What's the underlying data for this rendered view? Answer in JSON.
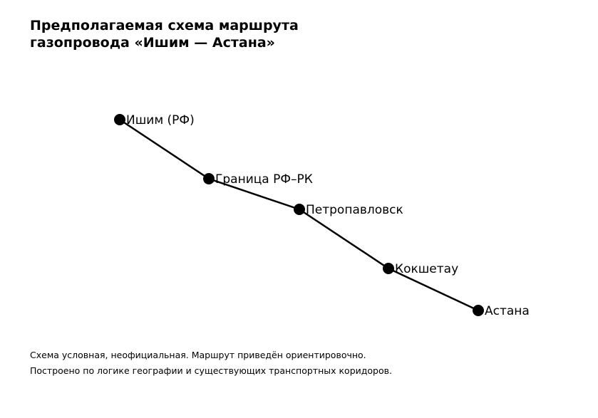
{
  "title": {
    "line1": "Предполагаемая схема маршрута",
    "line2": "газопровода «Ишим — Астана»"
  },
  "route": {
    "nodes": [
      {
        "label": "Ишим (РФ)"
      },
      {
        "label": "Граница РФ–РК"
      },
      {
        "label": "Петропавловск"
      },
      {
        "label": "Кокшетау"
      },
      {
        "label": "Астана"
      }
    ],
    "line_color": "#000000",
    "node_color": "#000000"
  },
  "notes": {
    "line1": "Схема условная, неофициальная. Маршрут приведён ориентировочно.",
    "line2": "Построено по логике географии и существующих транспортных коридоров."
  }
}
